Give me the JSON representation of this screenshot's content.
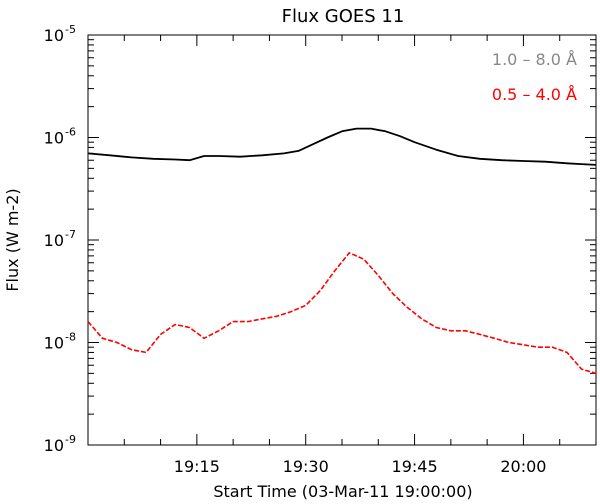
{
  "chart_data": {
    "type": "line",
    "title": "Flux GOES 11",
    "xlabel": "Start Time (03-Mar-11 19:00:00)",
    "ylabel": "Flux (W m-2)",
    "yscale": "log",
    "ylim": [
      1e-09,
      1e-05
    ],
    "xlim": [
      "19:00",
      "20:10"
    ],
    "grid": false,
    "legend_position": "top-right",
    "x_ticks": [
      {
        "t": "19:15",
        "label": "19:15"
      },
      {
        "t": "19:30",
        "label": "19:30"
      },
      {
        "t": "19:45",
        "label": "19:45"
      },
      {
        "t": "20:00",
        "label": "20:00"
      }
    ],
    "y_ticks": [
      {
        "value": 1e-09,
        "base": "10",
        "exp": "-9"
      },
      {
        "value": 1e-08,
        "base": "10",
        "exp": "-8"
      },
      {
        "value": 1e-07,
        "base": "10",
        "exp": "-7"
      },
      {
        "value": 1e-06,
        "base": "10",
        "exp": "-6"
      },
      {
        "value": 1e-05,
        "base": "10",
        "exp": "-5"
      }
    ],
    "series": [
      {
        "name": "1.0 – 8.0 Å",
        "color": "#000000",
        "style": "solid",
        "points": [
          [
            "19:00",
            7e-07
          ],
          [
            "19:03",
            6.7e-07
          ],
          [
            "19:06",
            6.4e-07
          ],
          [
            "19:09",
            6.2e-07
          ],
          [
            "19:12",
            6.1e-07
          ],
          [
            "19:14",
            6e-07
          ],
          [
            "19:16",
            6.6e-07
          ],
          [
            "19:18",
            6.6e-07
          ],
          [
            "19:21",
            6.5e-07
          ],
          [
            "19:24",
            6.7e-07
          ],
          [
            "19:27",
            7e-07
          ],
          [
            "19:29",
            7.4e-07
          ],
          [
            "19:31",
            8.6e-07
          ],
          [
            "19:33",
            1e-06
          ],
          [
            "19:35",
            1.15e-06
          ],
          [
            "19:37",
            1.22e-06
          ],
          [
            "19:39",
            1.22e-06
          ],
          [
            "19:41",
            1.15e-06
          ],
          [
            "19:43",
            1.03e-06
          ],
          [
            "19:45",
            9e-07
          ],
          [
            "19:48",
            7.6e-07
          ],
          [
            "19:51",
            6.6e-07
          ],
          [
            "19:54",
            6.2e-07
          ],
          [
            "19:57",
            6e-07
          ],
          [
            "20:00",
            5.9e-07
          ],
          [
            "20:03",
            5.8e-07
          ],
          [
            "20:06",
            5.6e-07
          ],
          [
            "20:08",
            5.5e-07
          ],
          [
            "20:10",
            5.4e-07
          ]
        ]
      },
      {
        "name": "0.5 – 4.0 Å",
        "color": "#ff0000",
        "style": "dashed",
        "points": [
          [
            "19:00",
            1.6e-08
          ],
          [
            "19:02",
            1.1e-08
          ],
          [
            "19:04",
            1e-08
          ],
          [
            "19:06",
            8.5e-09
          ],
          [
            "19:08",
            8e-09
          ],
          [
            "19:10",
            1.2e-08
          ],
          [
            "19:12",
            1.5e-08
          ],
          [
            "19:14",
            1.4e-08
          ],
          [
            "19:16",
            1.1e-08
          ],
          [
            "19:18",
            1.3e-08
          ],
          [
            "19:20",
            1.6e-08
          ],
          [
            "19:22",
            1.6e-08
          ],
          [
            "19:24",
            1.7e-08
          ],
          [
            "19:26",
            1.8e-08
          ],
          [
            "19:28",
            2e-08
          ],
          [
            "19:30",
            2.3e-08
          ],
          [
            "19:32",
            3.2e-08
          ],
          [
            "19:34",
            5e-08
          ],
          [
            "19:36",
            7.5e-08
          ],
          [
            "19:38",
            6.5e-08
          ],
          [
            "19:40",
            4.5e-08
          ],
          [
            "19:42",
            3e-08
          ],
          [
            "19:44",
            2.2e-08
          ],
          [
            "19:46",
            1.7e-08
          ],
          [
            "19:48",
            1.4e-08
          ],
          [
            "19:50",
            1.3e-08
          ],
          [
            "19:52",
            1.3e-08
          ],
          [
            "19:54",
            1.2e-08
          ],
          [
            "19:56",
            1.1e-08
          ],
          [
            "19:58",
            1e-08
          ],
          [
            "20:00",
            9.5e-09
          ],
          [
            "20:02",
            9e-09
          ],
          [
            "20:04",
            9e-09
          ],
          [
            "20:06",
            8e-09
          ],
          [
            "20:08",
            5.5e-09
          ],
          [
            "20:10",
            5e-09
          ]
        ]
      }
    ]
  }
}
